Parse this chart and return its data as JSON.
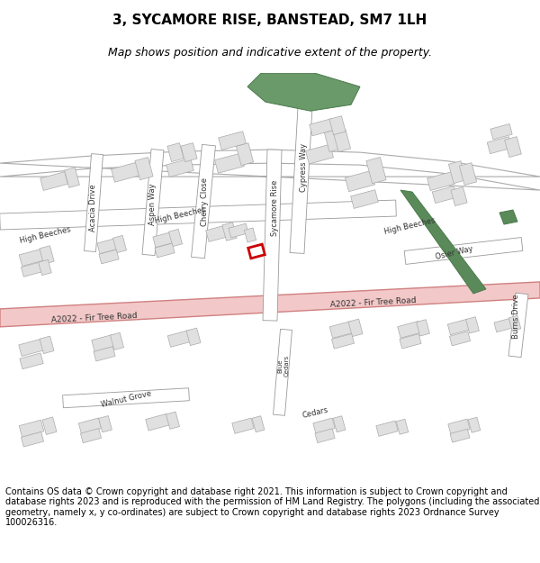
{
  "title_line1": "3, SYCAMORE RISE, BANSTEAD, SM7 1LH",
  "title_line2": "Map shows position and indicative extent of the property.",
  "footer_text": "Contains OS data © Crown copyright and database right 2021. This information is subject to Crown copyright and database rights 2023 and is reproduced with the permission of HM Land Registry. The polygons (including the associated geometry, namely x, y co-ordinates) are subject to Crown copyright and database rights 2023 Ordnance Survey 100026316.",
  "map_bg": "#f8f8f8",
  "building_color": "#e0e0e0",
  "building_edge": "#aaaaaa",
  "road_color": "#ffffff",
  "road_edge": "#888888",
  "a_road_fill": "#f2c8c8",
  "a_road_edge": "#d08080",
  "green_color": "#6a9a6a",
  "green2_color": "#5a8a5a",
  "highlight_color": "#cc0000",
  "title_fontsize": 11,
  "subtitle_fontsize": 9,
  "footer_fontsize": 7,
  "label_fontsize": 6,
  "label_color": "#333333"
}
